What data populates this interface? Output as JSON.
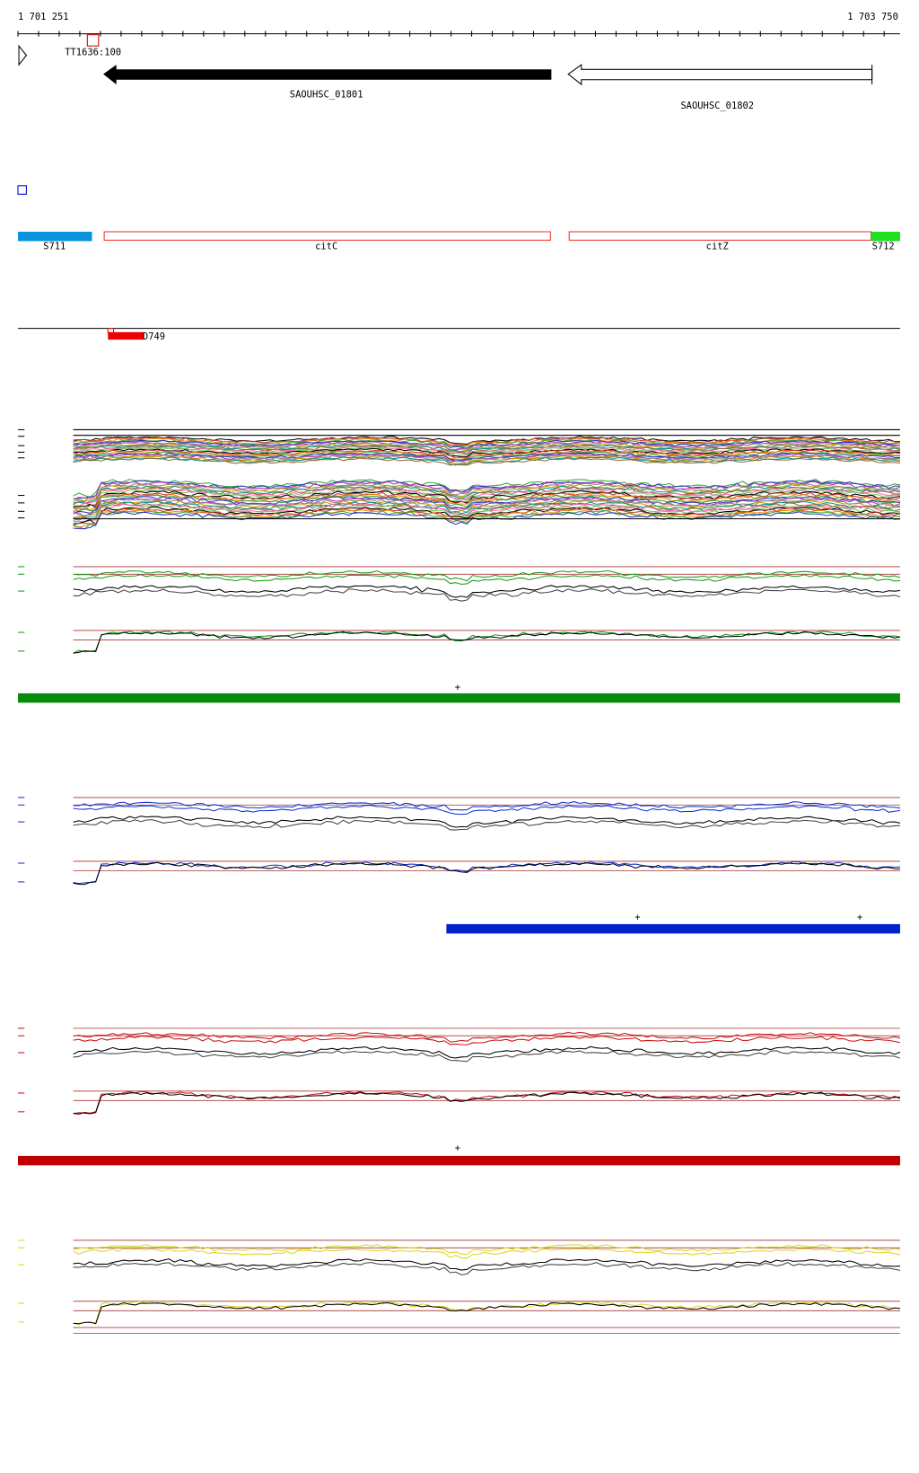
{
  "ruler": {
    "start": "1 701 251",
    "end": "1 703 750"
  },
  "genes": [
    {
      "label": "TT1636:100"
    },
    {
      "label": "SAOUHSC_01801"
    },
    {
      "label": "SAOUHSC_01802"
    }
  ],
  "features": [
    {
      "label": "S711"
    },
    {
      "label": "citC"
    },
    {
      "label": "citZ"
    },
    {
      "label": "S712"
    }
  ],
  "regions": [
    {
      "label": "D749"
    }
  ],
  "markers": [
    {
      "label": "+"
    },
    {
      "label": "+"
    },
    {
      "label": "+"
    },
    {
      "label": "+"
    }
  ]
}
